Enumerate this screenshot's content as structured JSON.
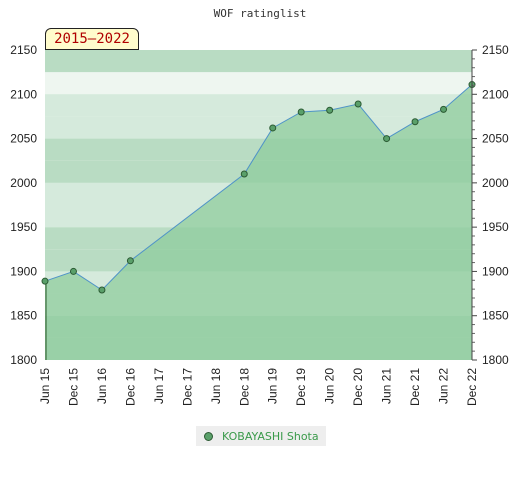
{
  "colors": {
    "band_light": "#d5eadc",
    "band_dark": "#b9dcc3",
    "area_fill": "#8fcc9e",
    "line": "#4f93c8",
    "marker_fill": "#5aa06a",
    "marker_stroke": "#2b5a33"
  },
  "chart_data": {
    "type": "area",
    "title": "WOF ratinglist",
    "period_label": "2015–2022",
    "x": [
      "Jun 15",
      "Dec 15",
      "Jun 16",
      "Dec 16",
      "Jun 17",
      "Dec 17",
      "Jun 18",
      "Dec 18",
      "Jun 19",
      "Dec 19",
      "Jun 20",
      "Dec 20",
      "Jun 21",
      "Dec 21",
      "Jun 22",
      "Dec 22"
    ],
    "ylim": [
      1800,
      2150
    ],
    "yticks": [
      1800,
      1850,
      1900,
      1950,
      2000,
      2050,
      2100,
      2150
    ],
    "series": [
      {
        "name": "KOBAYASHI Shota",
        "values": [
          1889,
          1900,
          1879,
          1912,
          null,
          null,
          null,
          2010,
          2062,
          2080,
          2082,
          2089,
          2050,
          2069,
          2083,
          2111
        ]
      }
    ],
    "legend_position": "bottom"
  }
}
